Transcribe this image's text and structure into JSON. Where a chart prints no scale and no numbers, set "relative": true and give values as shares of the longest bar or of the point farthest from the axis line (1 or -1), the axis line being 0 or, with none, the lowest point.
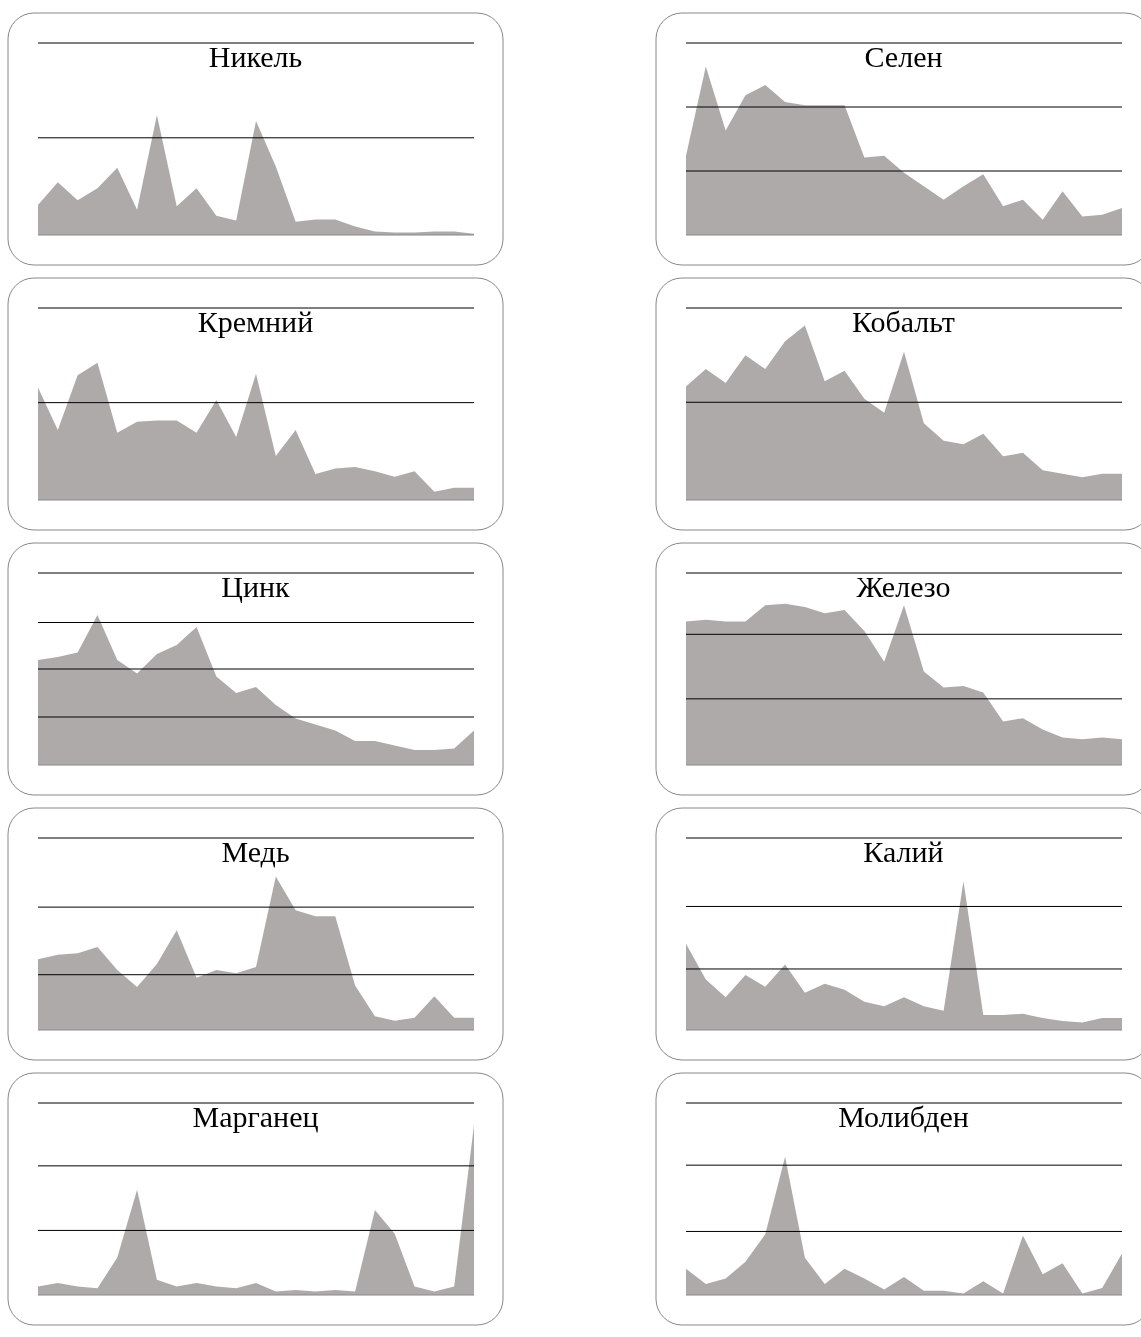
{
  "chart_data": [
    {
      "type": "area",
      "title": "Никель",
      "relative": true,
      "color": "#aeaaaa",
      "ref_lines": [
        {
          "axis": "y",
          "value": 1.6
        },
        {
          "axis": "y",
          "value": 0.81
        }
      ],
      "categories": [
        null,
        null,
        null,
        null,
        null,
        null,
        null,
        null,
        null,
        null,
        null,
        null,
        null,
        null,
        null,
        null,
        null,
        null,
        null,
        null,
        null,
        null,
        null
      ],
      "values": [
        0.25,
        0.44,
        0.29,
        0.39,
        0.56,
        0.21,
        1,
        0.24,
        0.39,
        0.16,
        0.12,
        0.95,
        0.57,
        0.11,
        0.13,
        0.13,
        0.07,
        0.03,
        0.02,
        0.02,
        0.03,
        0.03,
        0.01
      ]
    },
    {
      "type": "area",
      "title": "Селен",
      "relative": true,
      "color": "#aeaaaa",
      "ref_lines": [
        {
          "axis": "y",
          "value": 1.14
        },
        {
          "axis": "y",
          "value": 0.76
        },
        {
          "axis": "y",
          "value": 0.38
        }
      ],
      "categories": [
        null,
        null,
        null,
        null,
        null,
        null,
        null,
        null,
        null,
        null,
        null,
        null,
        null,
        null,
        null,
        null,
        null,
        null,
        null,
        null,
        null,
        null,
        null
      ],
      "values": [
        0.47,
        1,
        0.62,
        0.83,
        0.89,
        0.79,
        0.77,
        0.77,
        0.77,
        0.46,
        0.47,
        0.37,
        0.29,
        0.21,
        0.29,
        0.36,
        0.17,
        0.21,
        0.09,
        0.26,
        0.11,
        0.12,
        0.16
      ]
    },
    {
      "type": "area",
      "title": "Кремний",
      "relative": true,
      "color": "#aeaaaa",
      "ref_lines": [
        {
          "axis": "y",
          "value": 1.4
        },
        {
          "axis": "y",
          "value": 0.71
        }
      ],
      "categories": [
        null,
        null,
        null,
        null,
        null,
        null,
        null,
        null,
        null,
        null,
        null,
        null,
        null,
        null,
        null,
        null,
        null,
        null,
        null,
        null,
        null,
        null,
        null
      ],
      "values": [
        0.82,
        0.51,
        0.91,
        1,
        0.49,
        0.57,
        0.58,
        0.58,
        0.49,
        0.73,
        0.46,
        0.92,
        0.32,
        0.51,
        0.19,
        0.23,
        0.24,
        0.21,
        0.17,
        0.21,
        0.06,
        0.09,
        0.09
      ]
    },
    {
      "type": "area",
      "title": "Кобальт",
      "relative": true,
      "color": "#aeaaaa",
      "ref_lines": [
        {
          "axis": "y",
          "value": 1.1
        },
        {
          "axis": "y",
          "value": 0.56
        }
      ],
      "categories": [
        null,
        null,
        null,
        null,
        null,
        null,
        null,
        null,
        null,
        null,
        null,
        null,
        null,
        null,
        null,
        null,
        null,
        null,
        null,
        null,
        null,
        null,
        null
      ],
      "values": [
        0.65,
        0.75,
        0.67,
        0.83,
        0.75,
        0.91,
        1,
        0.68,
        0.74,
        0.58,
        0.5,
        0.85,
        0.44,
        0.34,
        0.32,
        0.38,
        0.25,
        0.27,
        0.17,
        0.15,
        0.13,
        0.15,
        0.15
      ]
    },
    {
      "type": "area",
      "title": "Цинк",
      "relative": true,
      "color": "#aeaaaa",
      "ref_lines": [
        {
          "axis": "y",
          "value": 1.28
        },
        {
          "axis": "y",
          "value": 0.95
        },
        {
          "axis": "y",
          "value": 0.64
        },
        {
          "axis": "y",
          "value": 0.32
        }
      ],
      "categories": [
        null,
        null,
        null,
        null,
        null,
        null,
        null,
        null,
        null,
        null,
        null,
        null,
        null,
        null,
        null,
        null,
        null,
        null,
        null,
        null,
        null,
        null,
        null
      ],
      "values": [
        0.7,
        0.72,
        0.75,
        1,
        0.7,
        0.61,
        0.74,
        0.8,
        0.92,
        0.59,
        0.48,
        0.52,
        0.4,
        0.31,
        0.27,
        0.23,
        0.16,
        0.16,
        0.13,
        0.1,
        0.1,
        0.11,
        0.23
      ]
    },
    {
      "type": "area",
      "title": "Железо",
      "relative": true,
      "color": "#aeaaaa",
      "ref_lines": [
        {
          "axis": "y",
          "value": 1.19
        },
        {
          "axis": "y",
          "value": 0.81
        },
        {
          "axis": "y",
          "value": 0.41
        }
      ],
      "categories": [
        null,
        null,
        null,
        null,
        null,
        null,
        null,
        null,
        null,
        null,
        null,
        null,
        null,
        null,
        null,
        null,
        null,
        null,
        null,
        null,
        null,
        null,
        null
      ],
      "values": [
        0.89,
        0.9,
        0.89,
        0.89,
        0.99,
        1,
        0.98,
        0.94,
        0.96,
        0.83,
        0.64,
        0.99,
        0.58,
        0.48,
        0.49,
        0.45,
        0.27,
        0.29,
        0.22,
        0.17,
        0.16,
        0.17,
        0.16
      ]
    },
    {
      "type": "area",
      "title": "Медь",
      "relative": true,
      "color": "#aeaaaa",
      "ref_lines": [
        {
          "axis": "y",
          "value": 1.25
        },
        {
          "axis": "y",
          "value": 0.8
        },
        {
          "axis": "y",
          "value": 0.36
        }
      ],
      "categories": [
        null,
        null,
        null,
        null,
        null,
        null,
        null,
        null,
        null,
        null,
        null,
        null,
        null,
        null,
        null,
        null,
        null,
        null,
        null,
        null,
        null,
        null,
        null
      ],
      "values": [
        0.46,
        0.49,
        0.5,
        0.54,
        0.39,
        0.28,
        0.43,
        0.65,
        0.34,
        0.39,
        0.37,
        0.41,
        1,
        0.78,
        0.74,
        0.74,
        0.29,
        0.09,
        0.06,
        0.08,
        0.22,
        0.08,
        0.08
      ]
    },
    {
      "type": "area",
      "title": "Калий",
      "relative": true,
      "color": "#aeaaaa",
      "ref_lines": [
        {
          "axis": "y",
          "value": 1.29
        },
        {
          "axis": "y",
          "value": 0.83
        },
        {
          "axis": "y",
          "value": 0.41
        }
      ],
      "categories": [
        null,
        null,
        null,
        null,
        null,
        null,
        null,
        null,
        null,
        null,
        null,
        null,
        null,
        null,
        null,
        null,
        null,
        null,
        null,
        null,
        null,
        null,
        null
      ],
      "values": [
        0.58,
        0.34,
        0.22,
        0.37,
        0.29,
        0.44,
        0.25,
        0.31,
        0.27,
        0.19,
        0.16,
        0.22,
        0.16,
        0.13,
        1,
        0.1,
        0.1,
        0.11,
        0.08,
        0.06,
        0.05,
        0.08,
        0.08
      ]
    },
    {
      "type": "area",
      "title": "Марганец",
      "relative": true,
      "color": "#aeaaaa",
      "ref_lines": [
        {
          "axis": "y",
          "value": 1.13
        },
        {
          "axis": "y",
          "value": 0.76
        },
        {
          "axis": "y",
          "value": 0.38
        }
      ],
      "categories": [
        null,
        null,
        null,
        null,
        null,
        null,
        null,
        null,
        null,
        null,
        null,
        null,
        null,
        null,
        null,
        null,
        null,
        null,
        null,
        null,
        null,
        null,
        null
      ],
      "values": [
        0.05,
        0.07,
        0.05,
        0.04,
        0.22,
        0.62,
        0.09,
        0.05,
        0.07,
        0.05,
        0.04,
        0.07,
        0.02,
        0.03,
        0.02,
        0.03,
        0.02,
        0.5,
        0.36,
        0.05,
        0.02,
        0.05,
        1
      ]
    },
    {
      "type": "area",
      "title": "Молибден",
      "relative": true,
      "color": "#aeaaaa",
      "ref_lines": [
        {
          "axis": "y",
          "value": 1.39
        },
        {
          "axis": "y",
          "value": 0.94
        },
        {
          "axis": "y",
          "value": 0.46
        }
      ],
      "categories": [
        null,
        null,
        null,
        null,
        null,
        null,
        null,
        null,
        null,
        null,
        null,
        null,
        null,
        null,
        null,
        null,
        null,
        null,
        null,
        null,
        null,
        null,
        null
      ],
      "values": [
        0.19,
        0.08,
        0.12,
        0.24,
        0.44,
        1,
        0.27,
        0.08,
        0.19,
        0.12,
        0.04,
        0.13,
        0.03,
        0.03,
        0.01,
        0.1,
        0.01,
        0.43,
        0.15,
        0.23,
        0.01,
        0.05,
        0.3
      ]
    }
  ]
}
